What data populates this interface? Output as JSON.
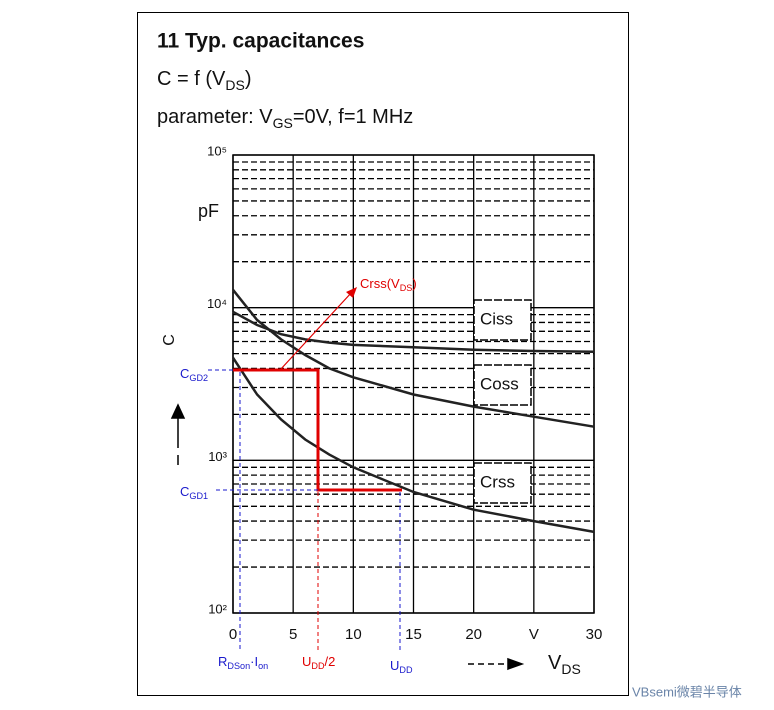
{
  "chart_data": {
    "type": "line",
    "title": "11 Typ. capacitances",
    "subtitle_parts": [
      {
        "text": "C = f (V"
      },
      {
        "text": "DS",
        "sub": true
      },
      {
        "text": ")"
      }
    ],
    "parameter_parts": [
      {
        "text": "parameter: V"
      },
      {
        "text": "GS",
        "sub": true
      },
      {
        "text": "=0V, f=1 MHz"
      }
    ],
    "y_label": "C",
    "y_unit": "pF",
    "x_label_parts": [
      {
        "text": "V"
      },
      {
        "text": "DS",
        "sub": true
      }
    ],
    "x": [
      0,
      2,
      4,
      6,
      8,
      10,
      15,
      20,
      25,
      30
    ],
    "series": [
      {
        "name": "Ciss",
        "color": "#222222",
        "values": [
          9400,
          7700,
          6700,
          6200,
          5900,
          5700,
          5500,
          5300,
          5200,
          5150
        ]
      },
      {
        "name": "Coss",
        "color": "#222222",
        "values": [
          13100,
          8300,
          6200,
          4900,
          4000,
          3500,
          2700,
          2250,
          1930,
          1660
        ]
      },
      {
        "name": "Crss",
        "color": "#222222",
        "values": [
          4700,
          2700,
          1850,
          1370,
          1090,
          900,
          620,
          475,
          400,
          340
        ]
      }
    ],
    "xlim": [
      0,
      30
    ],
    "ylim": [
      100,
      100000
    ],
    "log_y": true,
    "grid": true,
    "xticks": [
      0,
      5,
      10,
      15,
      20,
      {
        "value": 25,
        "label": "V"
      },
      30
    ],
    "yticks": [
      {
        "value": 100,
        "label": "10²"
      },
      {
        "value": 1000,
        "label": "10³"
      },
      {
        "value": 10000,
        "label": "10⁴"
      },
      {
        "value": 100000,
        "label": "10⁵"
      }
    ],
    "minor_yticks": [
      200,
      300,
      400,
      500,
      600,
      700,
      800,
      900,
      2000,
      3000,
      4000,
      5000,
      6000,
      7000,
      8000,
      9000,
      20000,
      30000,
      40000,
      50000,
      60000,
      70000,
      80000,
      90000
    ],
    "annotations": [
      {
        "color": "#e00000",
        "parts": [
          {
            "text": "Crss(V"
          },
          {
            "text": "DS",
            "sub": true
          },
          {
            "text": ")"
          }
        ]
      },
      {
        "color": "#1a1acc",
        "parts": [
          {
            "text": "C"
          },
          {
            "text": "GD2",
            "sub": true
          }
        ]
      },
      {
        "color": "#1a1acc",
        "parts": [
          {
            "text": "C"
          },
          {
            "text": "GD1",
            "sub": true
          }
        ]
      },
      {
        "color": "#1a1acc",
        "parts": [
          {
            "text": "R"
          },
          {
            "text": "DSon",
            "sub": true
          },
          {
            "text": "·I"
          },
          {
            "text": "on",
            "sub": true
          }
        ]
      },
      {
        "color": "#e00000",
        "parts": [
          {
            "text": "U"
          },
          {
            "text": "DD",
            "sub": true
          },
          {
            "text": "/2"
          }
        ]
      },
      {
        "color": "#1a1acc",
        "parts": [
          {
            "text": "U"
          },
          {
            "text": "DD",
            "sub": true
          }
        ]
      }
    ]
  },
  "watermark": "VBsemi微碧半导体"
}
